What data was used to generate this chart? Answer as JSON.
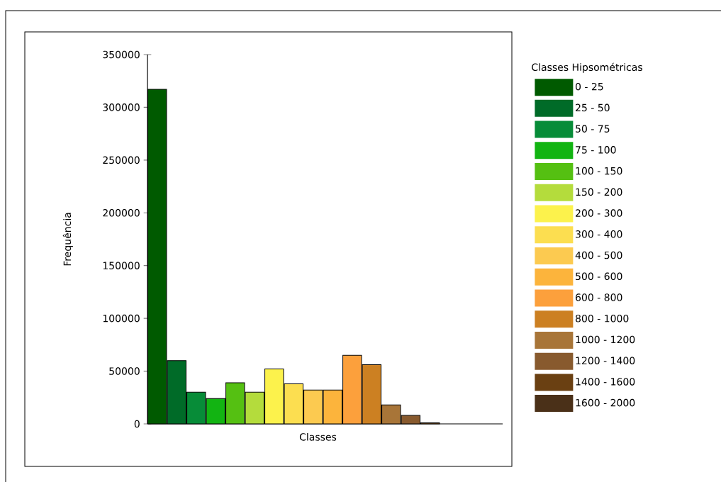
{
  "chart_data": {
    "type": "bar",
    "xlabel": "Classes",
    "ylabel": "Frequência",
    "legend_title": "Classes Hipsométricas",
    "categories": [
      null
    ],
    "series": [
      {
        "name": "0 - 25",
        "color": "#005a00",
        "values": [
          317000
        ]
      },
      {
        "name": "25 - 50",
        "color": "#006b28",
        "values": [
          60000
        ]
      },
      {
        "name": "50 - 75",
        "color": "#078c38",
        "values": [
          30000
        ]
      },
      {
        "name": "75 - 100",
        "color": "#12b412",
        "values": [
          24000
        ]
      },
      {
        "name": "100 - 150",
        "color": "#55c012",
        "values": [
          39000
        ]
      },
      {
        "name": "150 - 200",
        "color": "#b4dc3c",
        "values": [
          30000
        ]
      },
      {
        "name": "200 - 300",
        "color": "#fcf24c",
        "values": [
          52000
        ]
      },
      {
        "name": "300 - 400",
        "color": "#fcde50",
        "values": [
          38000
        ]
      },
      {
        "name": "400 - 500",
        "color": "#fcca50",
        "values": [
          32000
        ]
      },
      {
        "name": "500 - 600",
        "color": "#fcb43c",
        "values": [
          32000
        ]
      },
      {
        "name": "600 - 800",
        "color": "#fca03c",
        "values": [
          65000
        ]
      },
      {
        "name": "800 - 1000",
        "color": "#cc8022",
        "values": [
          56000
        ]
      },
      {
        "name": "1000 - 1200",
        "color": "#a87538",
        "values": [
          18000
        ]
      },
      {
        "name": "1200 - 1400",
        "color": "#885a2e",
        "values": [
          8000
        ]
      },
      {
        "name": "1400 - 1600",
        "color": "#6a4012",
        "values": [
          1000
        ]
      },
      {
        "name": "1600 - 2000",
        "color": "#4a3018",
        "values": [
          null
        ]
      }
    ],
    "ylim": [
      0,
      350000
    ],
    "yticks": [
      0,
      50000,
      100000,
      150000,
      200000,
      250000,
      300000,
      350000
    ],
    "legend": "right",
    "tick_labels": "y"
  }
}
